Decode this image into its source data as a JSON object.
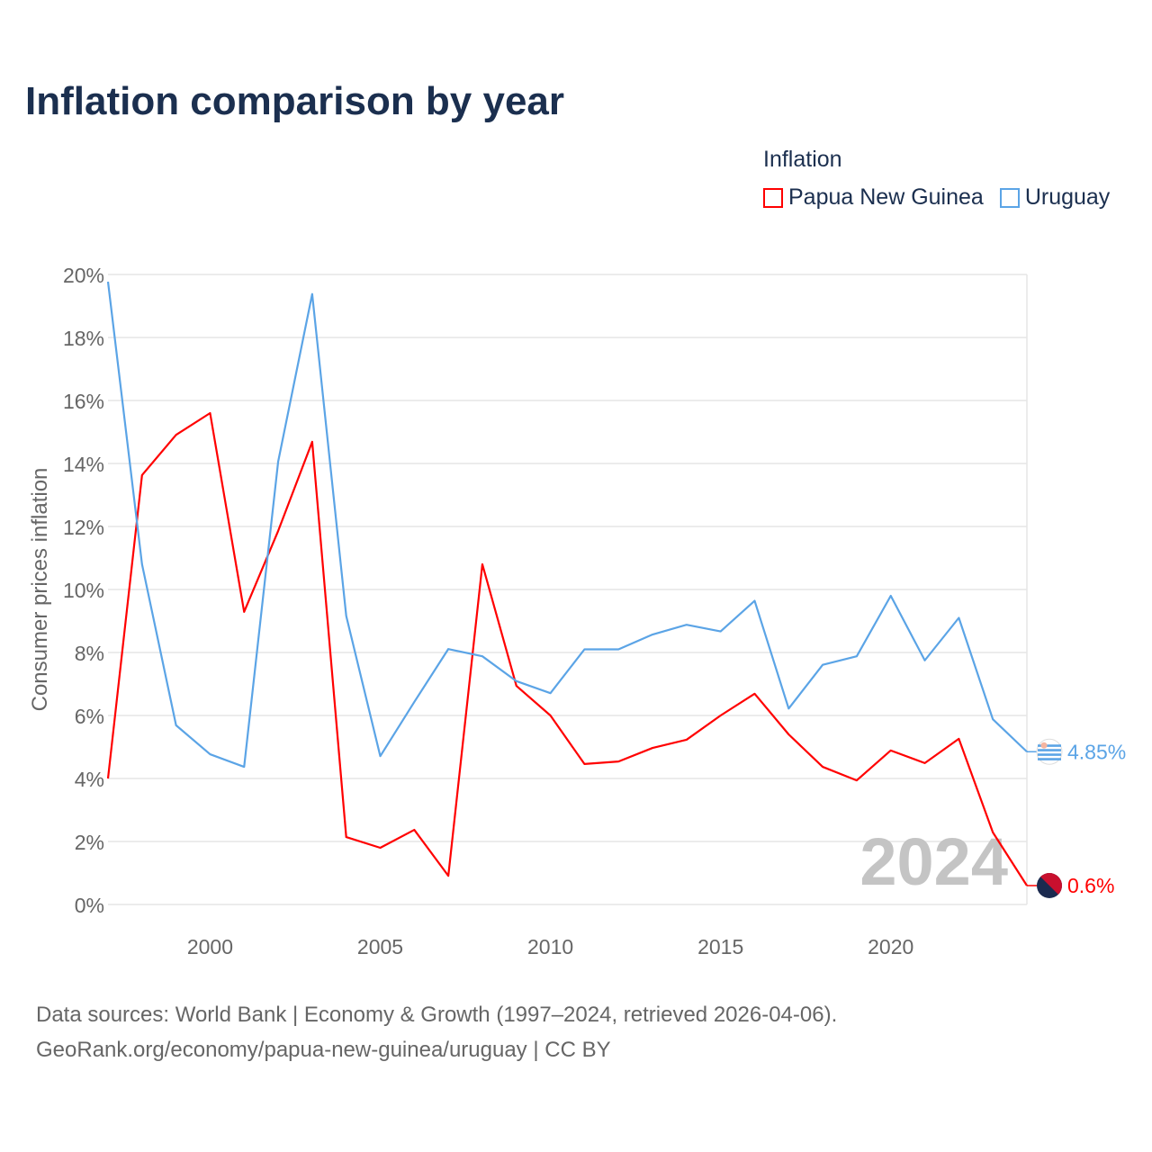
{
  "title": "Inflation comparison by year",
  "legend": {
    "title": "Inflation",
    "items": [
      {
        "label": "Papua New Guinea",
        "color": "#ff0000"
      },
      {
        "label": "Uruguay",
        "color": "#5ba4e6"
      }
    ]
  },
  "source": {
    "line1": "Data sources: World Bank | Economy & Growth (1997–2024, retrieved 2026-04-06).",
    "line2": "GeoRank.org/economy/papua-new-guinea/uruguay | CC BY"
  },
  "chart_data": {
    "type": "line",
    "title": "Inflation comparison by year",
    "xlabel": "",
    "ylabel": "Consumer prices inflation",
    "xlim": [
      1997,
      2024
    ],
    "ylim": [
      0,
      20
    ],
    "x_ticks": [
      2000,
      2005,
      2010,
      2015,
      2020
    ],
    "y_ticks": [
      "0%",
      "2%",
      "4%",
      "6%",
      "8%",
      "10%",
      "12%",
      "14%",
      "16%",
      "18%",
      "20%"
    ],
    "grid": true,
    "legend_placement": "top-right",
    "year_watermark": "2024",
    "x": [
      1997,
      1998,
      1999,
      2000,
      2001,
      2002,
      2003,
      2004,
      2005,
      2006,
      2007,
      2008,
      2009,
      2010,
      2011,
      2012,
      2013,
      2014,
      2015,
      2016,
      2017,
      2018,
      2019,
      2020,
      2021,
      2022,
      2023,
      2024
    ],
    "series": [
      {
        "name": "Papua New Guinea",
        "color": "#ff0000",
        "end_label": "0.6%",
        "values": [
          4.0,
          13.63,
          14.91,
          15.6,
          9.29,
          11.86,
          14.69,
          2.14,
          1.8,
          2.37,
          0.91,
          10.8,
          6.94,
          6.0,
          4.46,
          4.54,
          4.97,
          5.23,
          6.0,
          6.69,
          5.4,
          4.37,
          3.94,
          4.89,
          4.49,
          5.26,
          2.29,
          0.6
        ]
      },
      {
        "name": "Uruguay",
        "color": "#5ba4e6",
        "end_label": "4.85%",
        "values": [
          19.77,
          10.8,
          5.69,
          4.77,
          4.37,
          14.06,
          19.38,
          9.16,
          4.71,
          6.43,
          8.11,
          7.88,
          7.09,
          6.71,
          8.1,
          8.1,
          8.57,
          8.88,
          8.67,
          9.64,
          6.22,
          7.61,
          7.88,
          9.8,
          7.75,
          9.1,
          5.88,
          4.85
        ]
      }
    ]
  }
}
